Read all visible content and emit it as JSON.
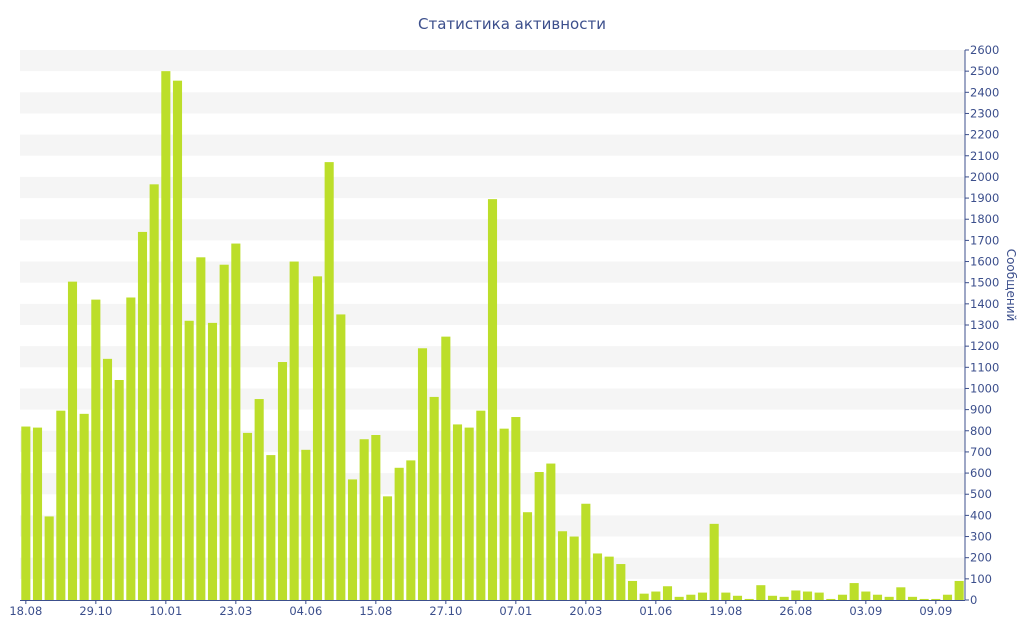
{
  "chart_data": {
    "type": "bar",
    "title": "Статистика активности",
    "ylabel": "Сообщений",
    "ylim": [
      0,
      2600
    ],
    "y_ticks": [
      0,
      100,
      200,
      300,
      400,
      500,
      600,
      700,
      800,
      900,
      1000,
      1100,
      1200,
      1300,
      1400,
      1500,
      1600,
      1700,
      1800,
      1900,
      2000,
      2100,
      2200,
      2300,
      2400,
      2500,
      2600
    ],
    "x_tick_labels": [
      {
        "index": 0,
        "label": "18.08"
      },
      {
        "index": 6,
        "label": "29.10"
      },
      {
        "index": 12,
        "label": "10.01"
      },
      {
        "index": 18,
        "label": "23.03"
      },
      {
        "index": 24,
        "label": "04.06"
      },
      {
        "index": 30,
        "label": "15.08"
      },
      {
        "index": 36,
        "label": "27.10"
      },
      {
        "index": 42,
        "label": "07.01"
      },
      {
        "index": 48,
        "label": "20.03"
      },
      {
        "index": 54,
        "label": "01.06"
      },
      {
        "index": 60,
        "label": "19.08"
      },
      {
        "index": 66,
        "label": "26.08"
      },
      {
        "index": 72,
        "label": "03.09"
      },
      {
        "index": 78,
        "label": "09.09"
      }
    ],
    "values": [
      820,
      815,
      395,
      895,
      1505,
      880,
      1420,
      1140,
      1040,
      1430,
      1740,
      1965,
      2500,
      2455,
      1320,
      1620,
      1310,
      1585,
      1685,
      790,
      950,
      685,
      1125,
      1600,
      710,
      1530,
      2070,
      1350,
      570,
      760,
      780,
      490,
      625,
      660,
      1190,
      960,
      1245,
      830,
      815,
      895,
      1895,
      810,
      865,
      415,
      605,
      645,
      325,
      300,
      455,
      220,
      205,
      170,
      90,
      30,
      40,
      65,
      15,
      25,
      35,
      360,
      35,
      20,
      5,
      70,
      20,
      15,
      45,
      40,
      35,
      5,
      25,
      80,
      40,
      25,
      15,
      60,
      15,
      5,
      5,
      25,
      90
    ],
    "bar_color": "#bcde2a",
    "band_color": "#f5f5f5",
    "axis_text_color": "#3c4f8c",
    "grid": "alternating horizontal bands",
    "y_axis_position": "right"
  }
}
